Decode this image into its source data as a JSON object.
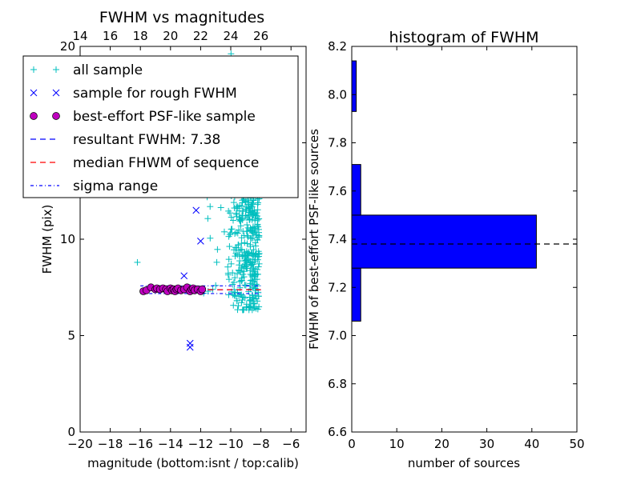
{
  "chart_data": [
    {
      "type": "scatter",
      "title": "FWHM vs magnitudes",
      "xlabel": "magnitude (bottom:isnt / top:calib)",
      "ylabel": "FWHM (pix)",
      "xlim": [
        -20,
        -5
      ],
      "ylim": [
        0,
        20
      ],
      "xticks": [
        -20,
        -18,
        -16,
        -14,
        -12,
        -10,
        -8,
        -6
      ],
      "xtick_labels": [
        "−20",
        "−18",
        "−16",
        "−14",
        "−12",
        "−10",
        "−8",
        "−6"
      ],
      "yticks": [
        0,
        5,
        10,
        15,
        20
      ],
      "ytick_labels": [
        "0",
        "5",
        "10",
        "15",
        "20"
      ],
      "top_xticks": [
        14,
        16,
        18,
        20,
        22,
        24,
        26
      ],
      "top_xtick_labels": [
        "14",
        "16",
        "18",
        "20",
        "22",
        "24",
        "26"
      ],
      "top_axis_offset": 34,
      "legend_placement": "upper-left",
      "series": [
        {
          "name": "all sample",
          "marker": "plus",
          "color": "#00bfbf",
          "points": [
            [
              -16.2,
              8.8
            ],
            [
              -12.7,
              7.5
            ],
            [
              -11.0,
              7.6
            ],
            [
              -11.5,
              7.3
            ],
            [
              -11.8,
              7.2
            ],
            [
              -11.2,
              7.4
            ]
          ],
          "cluster": {
            "x_range": [
              -10.3,
              -8.1
            ],
            "y_range": [
              6.3,
              12.3
            ],
            "count": 320
          },
          "sparse": {
            "x_range": [
              -11.6,
              -8.6
            ],
            "y_range": [
              8.5,
              20
            ],
            "count": 60
          }
        },
        {
          "name": "sample for rough FWHM",
          "marker": "x",
          "color": "#0000ff",
          "points": [
            [
              -12.3,
              11.5
            ],
            [
              -12.0,
              9.9
            ],
            [
              -13.1,
              8.1
            ],
            [
              -12.7,
              4.6
            ],
            [
              -12.7,
              4.4
            ]
          ]
        },
        {
          "name": "best-effort PSF-like sample",
          "marker": "circle",
          "color": "#bf00bf",
          "points": [
            [
              -15.8,
              7.3
            ],
            [
              -15.6,
              7.35
            ],
            [
              -15.3,
              7.5
            ],
            [
              -15.0,
              7.4
            ],
            [
              -14.9,
              7.45
            ],
            [
              -14.7,
              7.4
            ],
            [
              -14.5,
              7.45
            ],
            [
              -14.3,
              7.4
            ],
            [
              -14.2,
              7.3
            ],
            [
              -14.0,
              7.45
            ],
            [
              -13.9,
              7.35
            ],
            [
              -13.8,
              7.4
            ],
            [
              -13.7,
              7.3
            ],
            [
              -13.6,
              7.4
            ],
            [
              -13.5,
              7.45
            ],
            [
              -13.3,
              7.35
            ],
            [
              -13.1,
              7.4
            ],
            [
              -12.9,
              7.5
            ],
            [
              -12.7,
              7.3
            ],
            [
              -12.6,
              7.4
            ],
            [
              -12.5,
              7.45
            ],
            [
              -12.4,
              7.35
            ],
            [
              -12.2,
              7.4
            ],
            [
              -12.0,
              7.3
            ],
            [
              -11.9,
              7.4
            ]
          ]
        }
      ],
      "lines": [
        {
          "name": "resultant FWHM: 7.38",
          "y": 7.38,
          "x_range": [
            -16,
            -8
          ],
          "style": "dashed",
          "color": "#0000ff"
        },
        {
          "name": "median FHWM of sequence",
          "y": 7.38,
          "x_range": [
            -16,
            -8
          ],
          "style": "dashed",
          "color": "#ff0000"
        },
        {
          "name": "sigma range",
          "y": 7.18,
          "x_range": [
            -16,
            -8
          ],
          "style": "dashdot",
          "color": "#0000ff"
        },
        {
          "name": "",
          "y": 7.58,
          "x_range": [
            -16,
            -8
          ],
          "style": "dashdot",
          "color": "#0000ff"
        }
      ],
      "legend": [
        {
          "label": "all sample",
          "marker": "plus",
          "color": "#00bfbf"
        },
        {
          "label": "sample for rough FWHM",
          "marker": "x",
          "color": "#0000ff"
        },
        {
          "label": "best-effort PSF-like sample",
          "marker": "circle",
          "color": "#bf00bf"
        },
        {
          "label": "resultant FWHM: 7.38",
          "marker": "dashed",
          "color": "#0000ff"
        },
        {
          "label": "median FHWM of sequence",
          "marker": "dashed",
          "color": "#ff0000"
        },
        {
          "label": "sigma range",
          "marker": "dashdot",
          "color": "#0000ff"
        }
      ]
    },
    {
      "type": "bar",
      "orientation": "horizontal",
      "title": "histogram of FWHM",
      "xlabel": "number of sources",
      "ylabel": "FWHM of best-effort PSF-like sources",
      "xlim": [
        0,
        50
      ],
      "ylim": [
        6.6,
        8.2
      ],
      "xticks": [
        0,
        10,
        20,
        30,
        40,
        50
      ],
      "xtick_labels": [
        "0",
        "10",
        "20",
        "30",
        "40",
        "50"
      ],
      "yticks": [
        6.6,
        6.8,
        7.0,
        7.2,
        7.4,
        7.6,
        7.8,
        8.0,
        8.2
      ],
      "ytick_labels": [
        "6.6",
        "6.8",
        "7.0",
        "7.2",
        "7.4",
        "7.6",
        "7.8",
        "8.0",
        "8.2"
      ],
      "color": "#0000ff",
      "bins": [
        {
          "y0": 7.06,
          "y1": 7.28,
          "count": 2
        },
        {
          "y0": 7.28,
          "y1": 7.5,
          "count": 41
        },
        {
          "y0": 7.5,
          "y1": 7.71,
          "count": 2
        },
        {
          "y0": 7.93,
          "y1": 8.14,
          "count": 1
        }
      ],
      "reference_line": {
        "y": 7.38,
        "style": "dashed",
        "color": "#000000"
      }
    }
  ]
}
